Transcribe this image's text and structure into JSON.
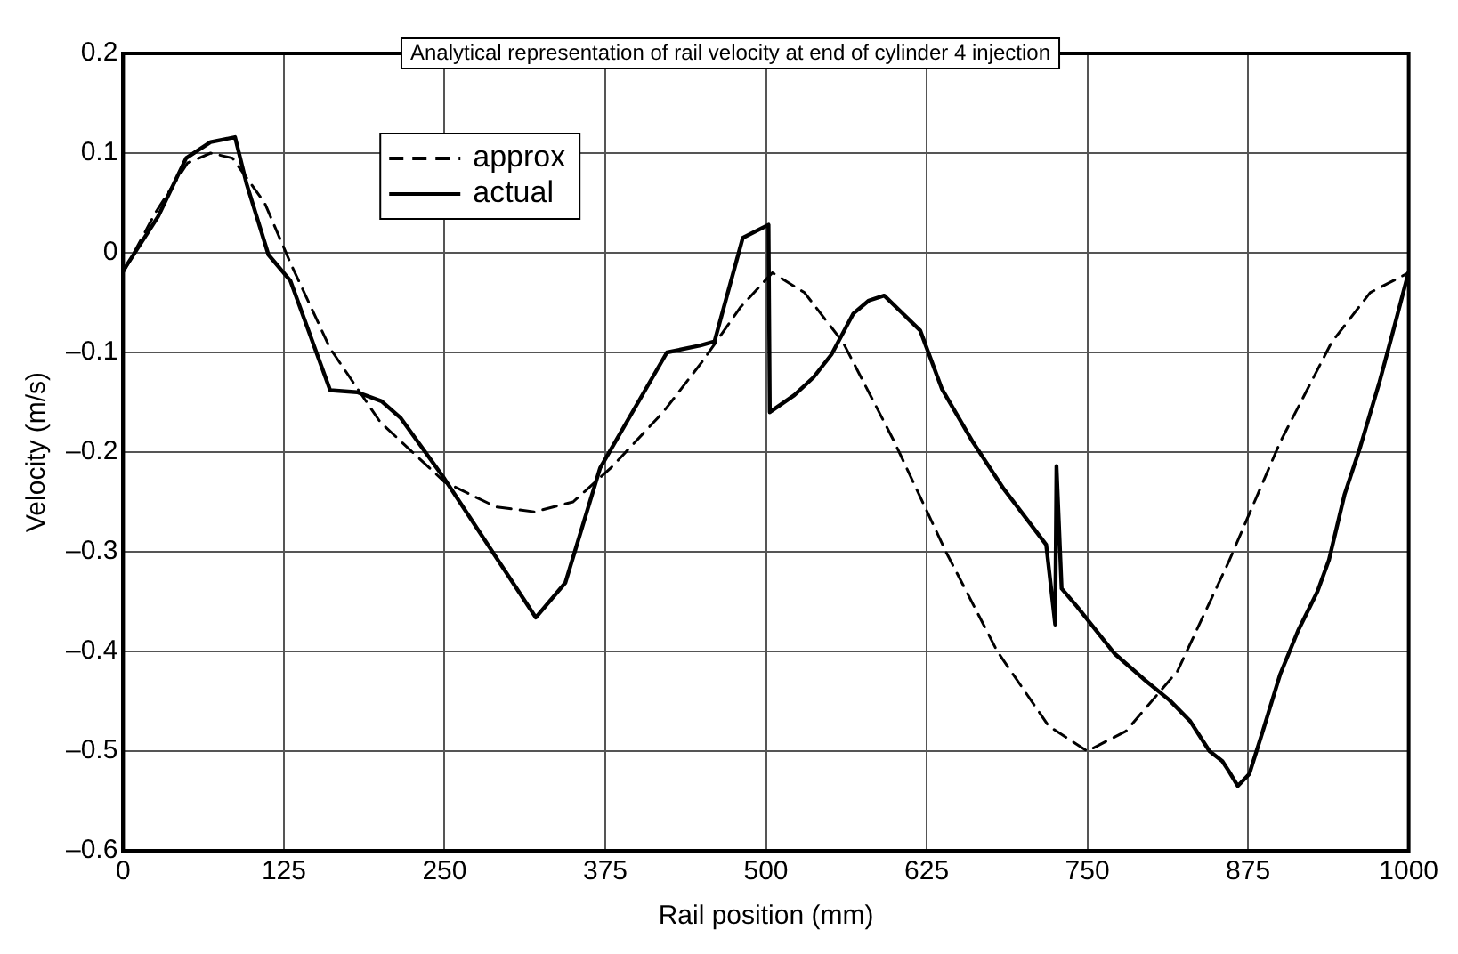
{
  "chart_data": {
    "type": "line",
    "title": "Analytical representation of rail velocity at end of cylinder 4 injection",
    "xlabel": "Rail position (mm)",
    "ylabel": "Velocity (m/s)",
    "xlim": [
      0,
      1000
    ],
    "xticks": [
      0,
      125,
      250,
      375,
      500,
      625,
      750,
      875,
      1000
    ],
    "ylim": [
      -0.6,
      0.2
    ],
    "yticks": [
      {
        "value": -0.6,
        "label": "–0.6"
      },
      {
        "value": -0.5,
        "label": "–0.5"
      },
      {
        "value": -0.4,
        "label": "–0.4"
      },
      {
        "value": -0.3,
        "label": "–0.3"
      },
      {
        "value": -0.2,
        "label": "–0.2"
      },
      {
        "value": -0.1,
        "label": "–0.1"
      },
      0,
      0.1,
      0.2
    ],
    "grid": true,
    "legend": "top left",
    "marker": "none",
    "series": [
      {
        "name": "approx",
        "color": "#000000",
        "line_style": "dashed",
        "x": [
          0,
          25,
          50,
          68,
          85,
          110,
          130,
          161,
          200,
          250,
          290,
          320,
          350,
          380,
          420,
          450,
          480,
          505,
          530,
          560,
          600,
          640,
          680,
          720,
          750,
          780,
          820,
          860,
          900,
          940,
          970,
          1000
        ],
        "values": [
          -0.02,
          0.04,
          0.09,
          0.1,
          0.095,
          0.05,
          -0.01,
          -0.096,
          -0.17,
          -0.23,
          -0.255,
          -0.26,
          -0.25,
          -0.215,
          -0.16,
          -0.11,
          -0.055,
          -0.02,
          -0.04,
          -0.09,
          -0.19,
          -0.3,
          -0.4,
          -0.475,
          -0.5,
          -0.48,
          -0.42,
          -0.31,
          -0.19,
          -0.09,
          -0.04,
          -0.02
        ]
      },
      {
        "name": "actual",
        "color": "#000000",
        "line_style": "solid",
        "x": [
          0,
          27,
          49,
          68,
          87,
          96,
          113,
          130,
          161,
          182,
          201,
          216,
          249,
          321,
          344,
          371,
          423,
          449,
          460,
          482,
          502,
          503,
          504,
          522,
          537,
          551,
          568,
          580,
          592,
          620,
          637,
          661,
          685,
          718,
          725,
          726,
          730,
          742,
          771,
          795,
          814,
          830,
          845,
          855,
          860,
          867,
          876,
          886,
          900,
          914,
          929,
          938,
          950,
          962,
          977,
          988,
          1000
        ],
        "values": [
          -0.018,
          0.036,
          0.095,
          0.111,
          0.116,
          0.069,
          -0.002,
          -0.028,
          -0.138,
          -0.14,
          -0.149,
          -0.166,
          -0.225,
          -0.366,
          -0.331,
          -0.216,
          -0.1,
          -0.093,
          -0.089,
          0.015,
          0.028,
          -0.16,
          -0.159,
          -0.143,
          -0.125,
          -0.102,
          -0.061,
          -0.048,
          -0.043,
          -0.078,
          -0.137,
          -0.19,
          -0.237,
          -0.293,
          -0.373,
          -0.214,
          -0.337,
          -0.355,
          -0.402,
          -0.429,
          -0.449,
          -0.47,
          -0.5,
          -0.51,
          -0.52,
          -0.535,
          -0.523,
          -0.482,
          -0.423,
          -0.379,
          -0.34,
          -0.308,
          -0.243,
          -0.196,
          -0.131,
          -0.078,
          -0.019
        ]
      }
    ]
  }
}
